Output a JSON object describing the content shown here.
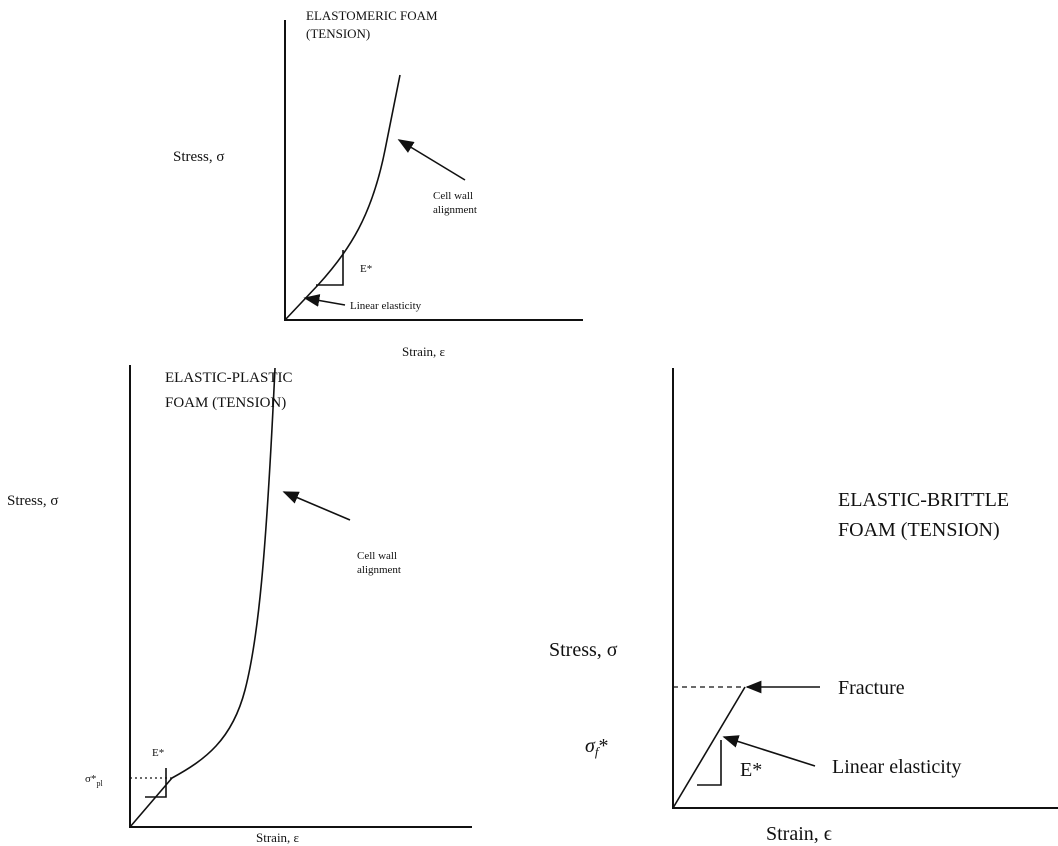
{
  "panels": [
    {
      "title": [
        "ELASTOMERIC FOAM",
        "(TENSION)"
      ],
      "y_label": "Stress, σ",
      "x_label": "Strain, ε",
      "annotations": {
        "upper": [
          "Cell wall",
          "alignment"
        ],
        "modulus": "E*",
        "lower": "Linear elasticity"
      }
    },
    {
      "title": [
        "ELASTIC-PLASTIC",
        "FOAM (TENSION)"
      ],
      "y_label": "Stress, σ",
      "x_label": "Strain, ε",
      "annotations": {
        "upper": [
          "Cell wall",
          "alignment"
        ],
        "modulus": "E*",
        "yield": {
          "symbol": "σ*",
          "subscript": "pl"
        }
      }
    },
    {
      "title": [
        "ELASTIC-BRITTLE",
        "FOAM (TENSION)"
      ],
      "y_label": "Stress, σ",
      "x_label": "Strain, ϵ",
      "annotations": {
        "fracture": "Fracture",
        "modulus": "E*",
        "lower": "Linear elasticity",
        "strength": {
          "symbol": "σ",
          "subscript": "f",
          "suffix": "*"
        }
      }
    }
  ]
}
